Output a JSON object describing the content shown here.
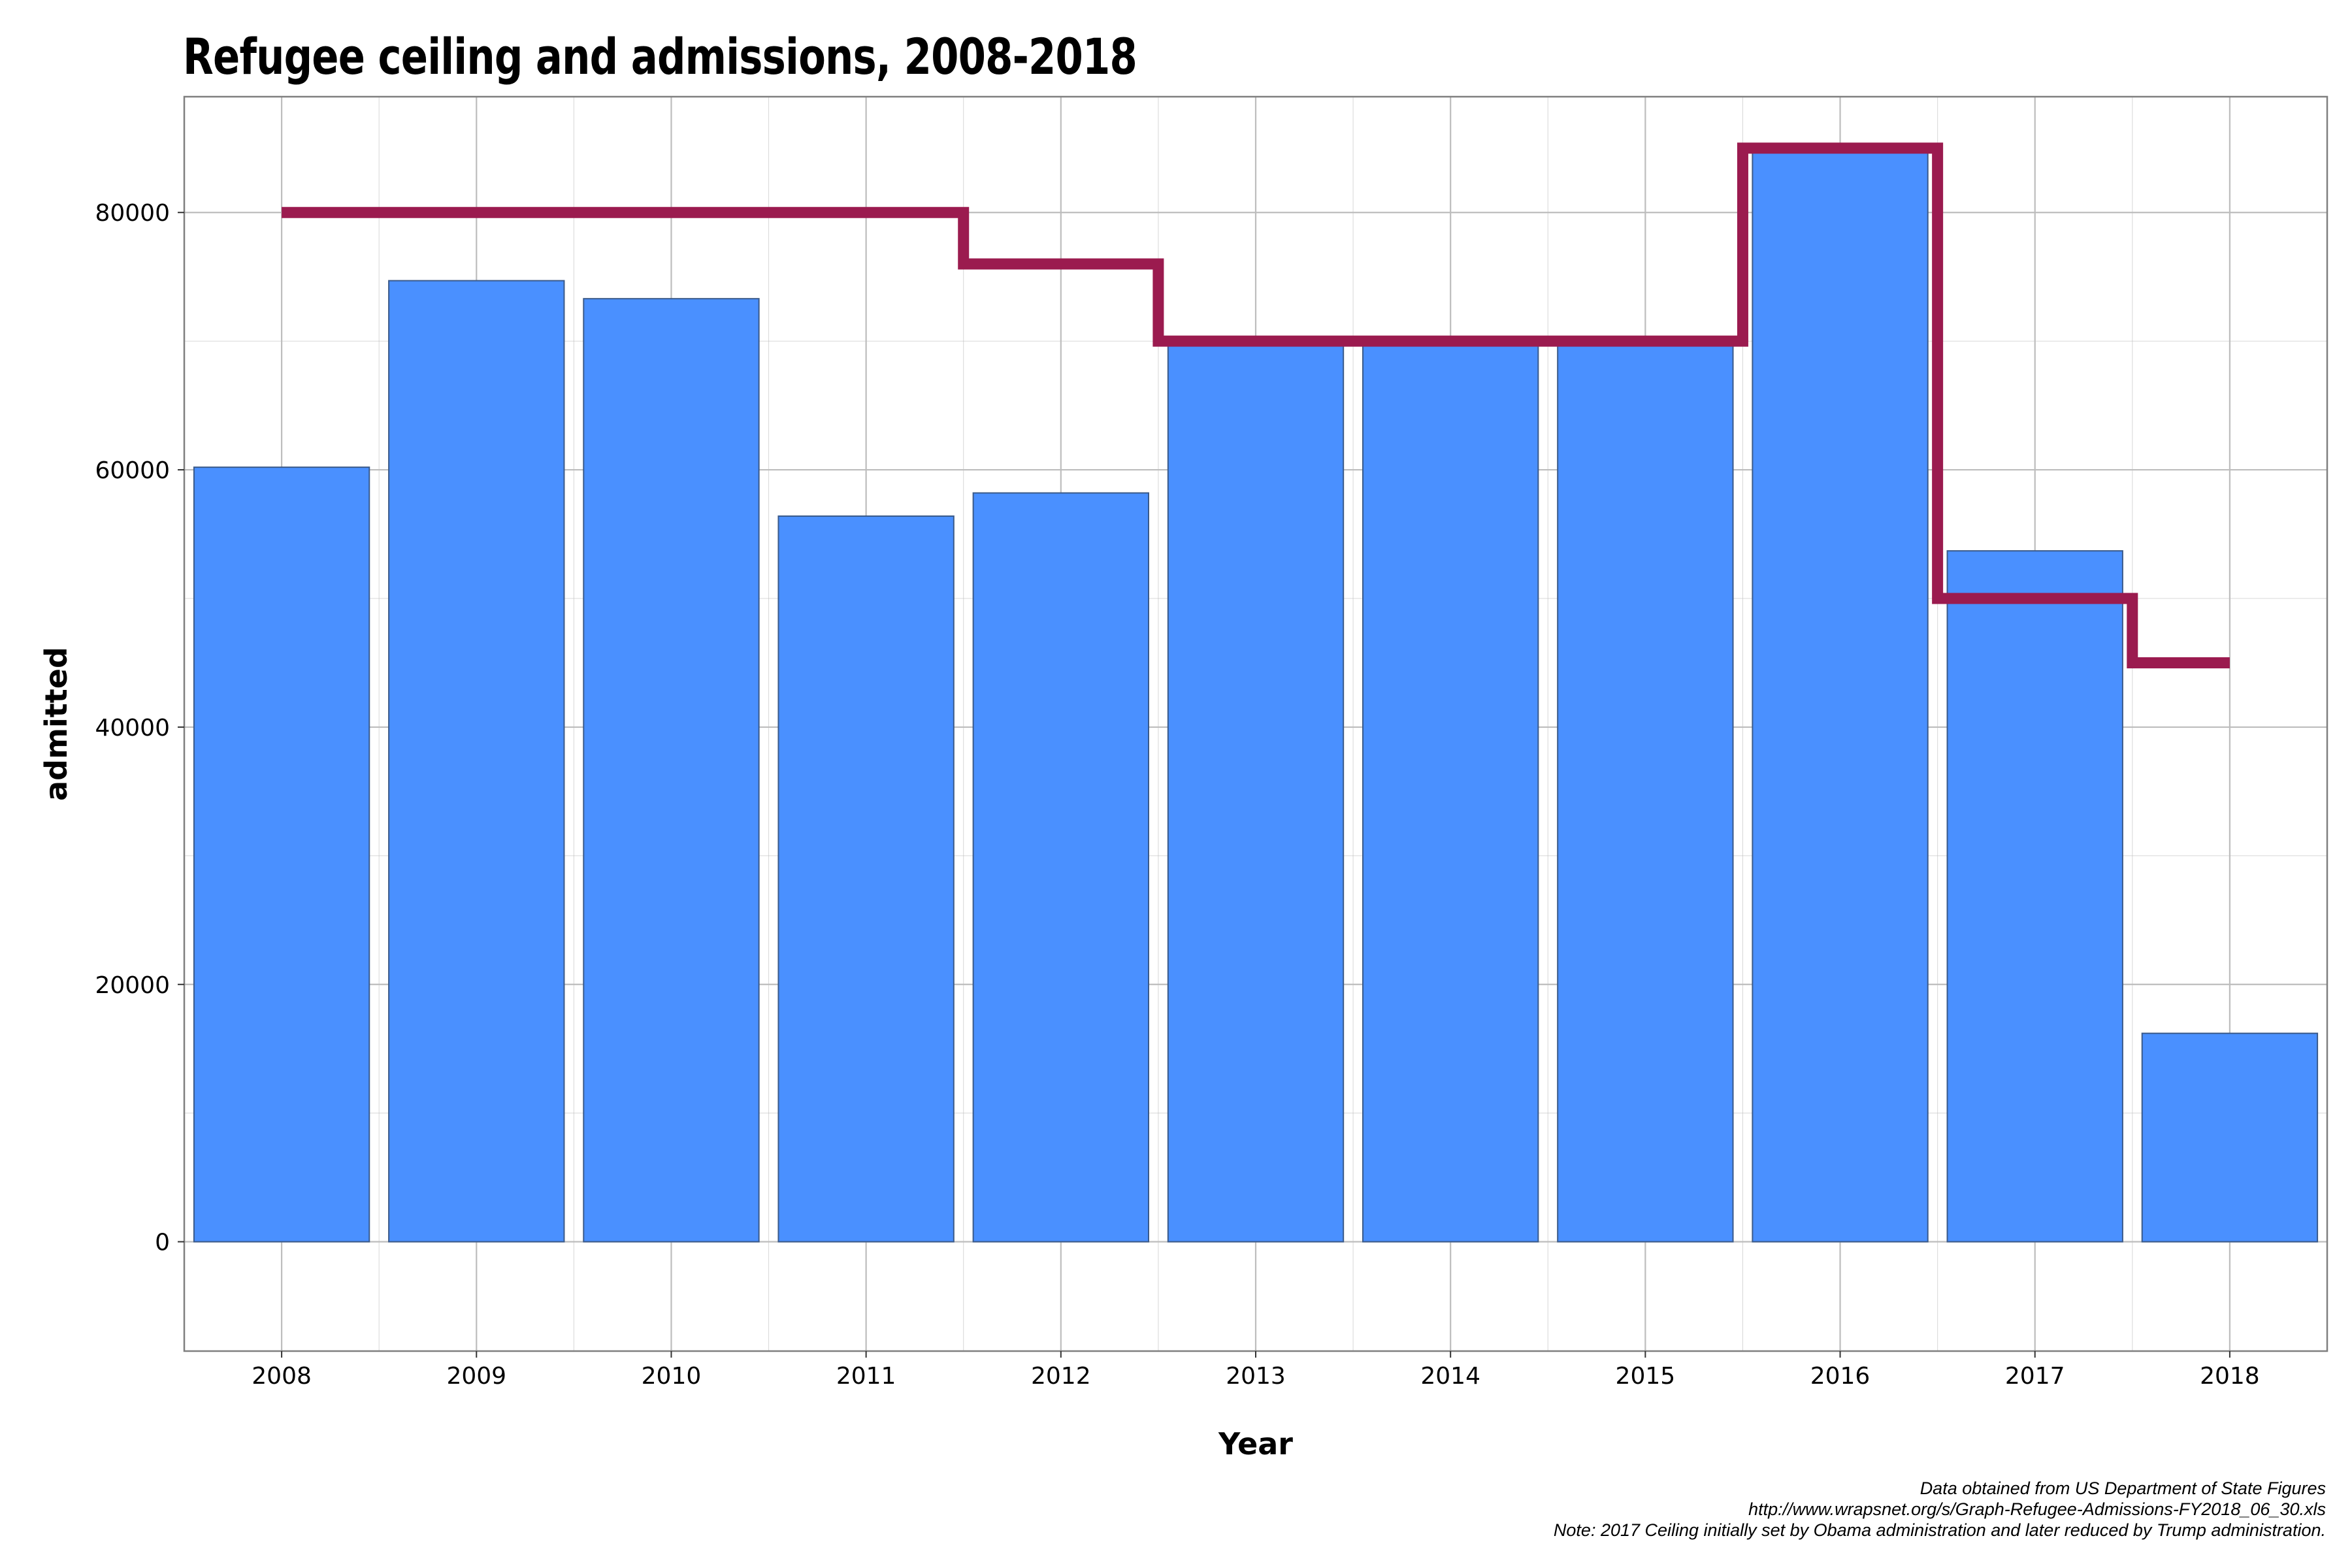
{
  "chart_data": {
    "type": "bar",
    "title": "Refugee ceiling and admissions, 2008-2018",
    "xlabel": "Year",
    "ylabel": "admitted",
    "ylim": [
      -8500,
      89000
    ],
    "yticks": [
      0,
      20000,
      40000,
      60000,
      80000
    ],
    "ytick_labels": [
      "0",
      "20000",
      "40000",
      "60000",
      "80000"
    ],
    "categories": [
      "2008",
      "2009",
      "2010",
      "2011",
      "2012",
      "2013",
      "2014",
      "2015",
      "2016",
      "2017",
      "2018"
    ],
    "series": [
      {
        "type": "bar",
        "values": [
          60200,
          74700,
          73300,
          56400,
          58200,
          70000,
          70000,
          70000,
          85000,
          53700,
          16200
        ]
      },
      {
        "type": "step",
        "values": [
          80000,
          80000,
          80000,
          80000,
          76000,
          70000,
          70000,
          70000,
          85000,
          50000,
          45000
        ]
      }
    ],
    "grid": true,
    "legend": "none",
    "colors": {
      "bar": "#4A90FF",
      "bar_edge": "#3A5A8A",
      "ceiling_line": "#9B1B4F",
      "grid": "#BDBDBD",
      "panel_border": "#7F7F7F"
    }
  },
  "caption": {
    "line1": "Data obtained from US Department of State Figures",
    "line2": "http://www.wrapsnet.org/s/Graph-Refugee-Admissions-FY2018_06_30.xls",
    "line3": "Note: 2017 Ceiling initially set by Obama administration and later reduced by Trump administration."
  }
}
